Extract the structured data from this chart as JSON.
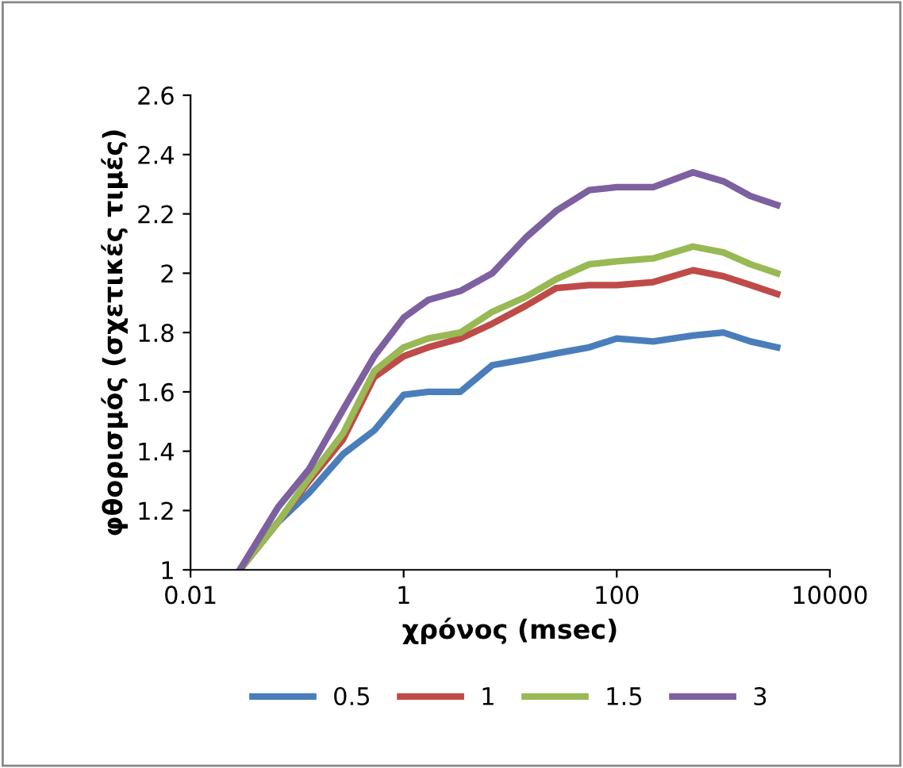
{
  "chart_data": {
    "type": "line",
    "xlabel": "χρόνος (msec)",
    "ylabel": "φθορισμός (σχετικές τιμές)",
    "log": "x",
    "xlim": [
      0.01,
      10000
    ],
    "xticks": [
      0.01,
      1,
      100,
      10000
    ],
    "ylim": [
      1,
      2.6
    ],
    "yticks": [
      1,
      1.2,
      1.4,
      1.6,
      1.8,
      2,
      2.2,
      2.4,
      2.6
    ],
    "grid": false,
    "legend": "bottom",
    "marker": "none",
    "line_style": "solid",
    "x": [
      0.029,
      0.066,
      0.13,
      0.27,
      0.53,
      1,
      1.7,
      3.4,
      6.8,
      14,
      27,
      55,
      100,
      220,
      520,
      1000,
      1800,
      3200
    ],
    "series": [
      {
        "name": "0.5",
        "color": "#4a7ebb",
        "values": [
          1.0,
          1.16,
          1.26,
          1.39,
          1.47,
          1.59,
          1.6,
          1.6,
          1.69,
          1.71,
          1.73,
          1.75,
          1.78,
          1.77,
          1.79,
          1.8,
          1.77,
          1.75
        ]
      },
      {
        "name": "1",
        "color": "#be4b48",
        "values": [
          1.0,
          1.16,
          1.3,
          1.44,
          1.65,
          1.72,
          1.75,
          1.78,
          1.83,
          1.89,
          1.95,
          1.96,
          1.96,
          1.97,
          2.01,
          1.99,
          1.96,
          1.93
        ]
      },
      {
        "name": "1.5",
        "color": "#98b954",
        "values": [
          1.0,
          1.16,
          1.31,
          1.46,
          1.67,
          1.75,
          1.78,
          1.8,
          1.87,
          1.92,
          1.98,
          2.03,
          2.04,
          2.05,
          2.09,
          2.07,
          2.03,
          2.0
        ]
      },
      {
        "name": "3",
        "color": "#7d60a0",
        "values": [
          1.0,
          1.21,
          1.34,
          1.54,
          1.72,
          1.85,
          1.91,
          1.94,
          2.0,
          2.12,
          2.21,
          2.28,
          2.29,
          2.29,
          2.34,
          2.31,
          2.26,
          2.23
        ]
      }
    ]
  }
}
